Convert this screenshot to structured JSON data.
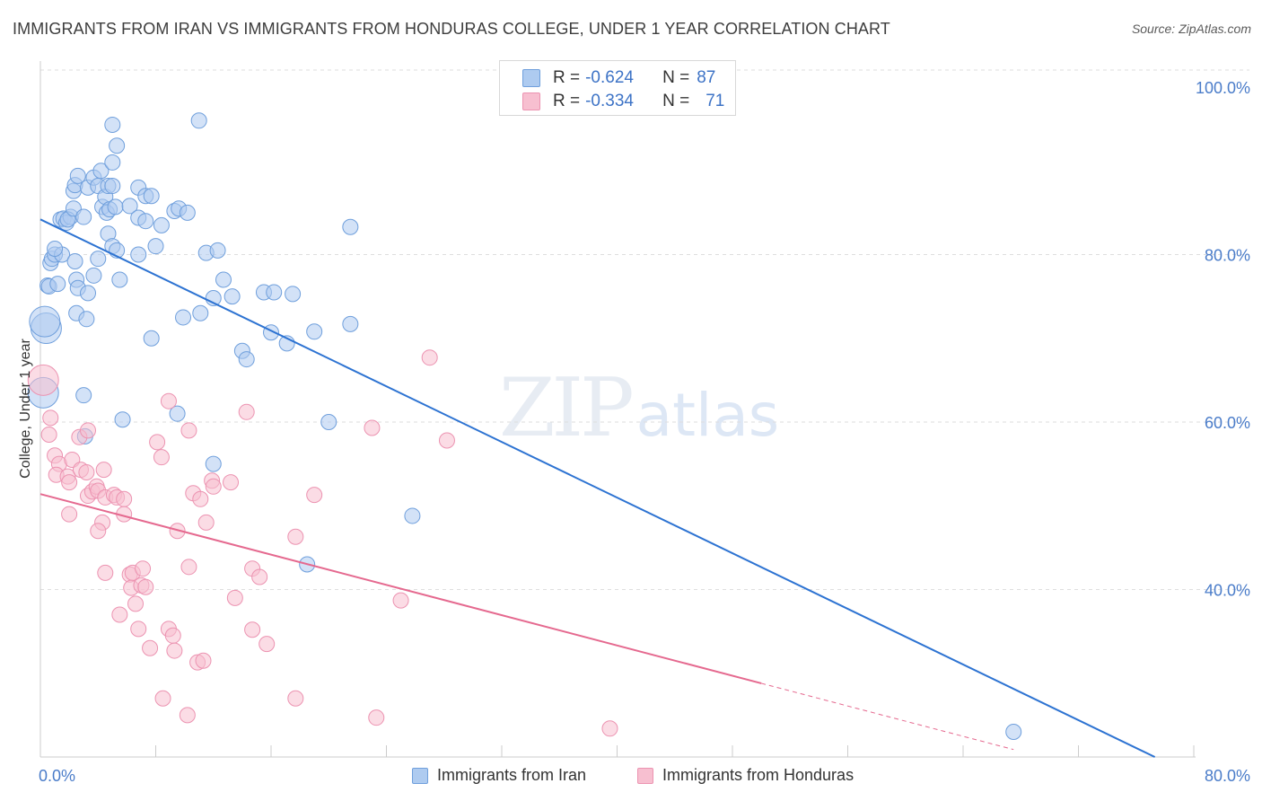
{
  "header": {
    "title": "IMMIGRANTS FROM IRAN VS IMMIGRANTS FROM HONDURAS COLLEGE, UNDER 1 YEAR CORRELATION CHART",
    "source": "Source: ZipAtlas.com"
  },
  "watermark": {
    "zip": "ZIP",
    "atlas": "atlas"
  },
  "stats": {
    "iran": {
      "r_label": "R =",
      "r_value": "-0.624",
      "n_label": "N =",
      "n_value": "87"
    },
    "honduras": {
      "r_label": "R =",
      "r_value": "-0.334",
      "n_label": "N =",
      "n_value": "71"
    }
  },
  "legend": {
    "iran": "Immigrants from Iran",
    "honduras": "Immigrants from Honduras"
  },
  "colors": {
    "iran_fill": "#aecbf0",
    "iran_stroke": "#6f9fdc",
    "iran_line": "#2d73d2",
    "honduras_fill": "#f7bfd0",
    "honduras_stroke": "#ec93b1",
    "honduras_line": "#e5698f",
    "axis_text": "#4a7cc9",
    "grid": "#dedede"
  },
  "chart_data": {
    "type": "scatter",
    "title": "IMMIGRANTS FROM IRAN VS IMMIGRANTS FROM HONDURAS COLLEGE, UNDER 1 YEAR CORRELATION CHART",
    "xlabel": "",
    "ylabel": "College, Under 1 year",
    "xlim": [
      0,
      80
    ],
    "ylim": [
      20,
      104
    ],
    "x_tick_labels": [
      "0.0%",
      "80.0%"
    ],
    "y_ticks": [
      40,
      60,
      80,
      100
    ],
    "y_tick_labels": [
      "40.0%",
      "60.0%",
      "80.0%",
      "100.0%"
    ],
    "grid": "horizontal dashed",
    "legend_position": "bottom-center",
    "series": [
      {
        "name": "Immigrants from Iran",
        "r": -0.624,
        "n": 87,
        "trend": {
          "x": [
            0,
            77.3
          ],
          "y": [
            84.2,
            20
          ]
        },
        "points": [
          [
            0.2,
            63.5
          ],
          [
            0.4,
            71.2
          ],
          [
            0.3,
            72.0
          ],
          [
            0.5,
            76.3
          ],
          [
            0.6,
            76.2
          ],
          [
            1.2,
            76.5
          ],
          [
            0.7,
            79.0
          ],
          [
            0.8,
            79.5
          ],
          [
            1.0,
            80.0
          ],
          [
            1.5,
            80.0
          ],
          [
            1.0,
            80.7
          ],
          [
            1.4,
            84.2
          ],
          [
            1.6,
            84.3
          ],
          [
            1.8,
            83.8
          ],
          [
            2.1,
            84.5
          ],
          [
            1.9,
            84.2
          ],
          [
            2.3,
            85.5
          ],
          [
            2.3,
            87.6
          ],
          [
            2.4,
            88.3
          ],
          [
            2.6,
            89.4
          ],
          [
            3.0,
            84.5
          ],
          [
            2.4,
            79.2
          ],
          [
            2.5,
            77.0
          ],
          [
            2.6,
            76.0
          ],
          [
            3.3,
            75.4
          ],
          [
            2.5,
            73.0
          ],
          [
            3.2,
            72.3
          ],
          [
            3.7,
            77.5
          ],
          [
            4.0,
            79.5
          ],
          [
            3.3,
            88.0
          ],
          [
            3.7,
            89.2
          ],
          [
            4.0,
            88.2
          ],
          [
            4.2,
            90.0
          ],
          [
            4.3,
            85.7
          ],
          [
            4.5,
            86.9
          ],
          [
            4.6,
            85.0
          ],
          [
            4.7,
            88.2
          ],
          [
            4.8,
            85.4
          ],
          [
            5.0,
            88.2
          ],
          [
            4.7,
            82.5
          ],
          [
            5.0,
            81.0
          ],
          [
            5.3,
            80.5
          ],
          [
            5.5,
            77.0
          ],
          [
            5.2,
            85.7
          ],
          [
            5.0,
            91.0
          ],
          [
            5.3,
            93.0
          ],
          [
            5.0,
            95.5
          ],
          [
            6.2,
            85.8
          ],
          [
            6.8,
            84.4
          ],
          [
            6.8,
            80.0
          ],
          [
            6.8,
            88.0
          ],
          [
            7.3,
            87.0
          ],
          [
            7.3,
            84.0
          ],
          [
            7.7,
            87.0
          ],
          [
            8.0,
            81.0
          ],
          [
            8.4,
            83.5
          ],
          [
            9.3,
            85.2
          ],
          [
            9.6,
            85.5
          ],
          [
            10.2,
            85.0
          ],
          [
            11.0,
            96.0
          ],
          [
            11.5,
            80.2
          ],
          [
            12.3,
            80.5
          ],
          [
            12.0,
            74.8
          ],
          [
            11.1,
            73.0
          ],
          [
            9.9,
            72.5
          ],
          [
            7.7,
            70.0
          ],
          [
            12.7,
            77.0
          ],
          [
            13.3,
            75.0
          ],
          [
            14.0,
            68.5
          ],
          [
            14.3,
            67.5
          ],
          [
            15.5,
            75.5
          ],
          [
            16.2,
            75.5
          ],
          [
            16.0,
            70.7
          ],
          [
            17.1,
            69.4
          ],
          [
            17.5,
            75.3
          ],
          [
            19.0,
            70.8
          ],
          [
            21.5,
            71.7
          ],
          [
            21.5,
            83.3
          ],
          [
            20.0,
            60.0
          ],
          [
            12.0,
            55.0
          ],
          [
            9.5,
            61.0
          ],
          [
            5.7,
            60.3
          ],
          [
            3.1,
            58.3
          ],
          [
            3.0,
            63.2
          ],
          [
            25.8,
            48.8
          ],
          [
            18.5,
            43.0
          ],
          [
            67.5,
            23.0
          ]
        ]
      },
      {
        "name": "Immigrants from Honduras",
        "r": -0.334,
        "n": 71,
        "trend": {
          "x": [
            0,
            50
          ],
          "y": [
            51.4,
            28.8
          ],
          "dashed_to": [
            80,
            15.3
          ]
        },
        "points": [
          [
            0.2,
            65.0
          ],
          [
            0.7,
            60.5
          ],
          [
            0.6,
            58.5
          ],
          [
            1.0,
            56.0
          ],
          [
            1.3,
            55.0
          ],
          [
            2.2,
            55.5
          ],
          [
            1.1,
            53.7
          ],
          [
            1.9,
            53.5
          ],
          [
            2.0,
            52.8
          ],
          [
            2.0,
            49.0
          ],
          [
            2.8,
            54.3
          ],
          [
            3.2,
            54.0
          ],
          [
            3.3,
            51.2
          ],
          [
            2.7,
            58.2
          ],
          [
            3.3,
            59.0
          ],
          [
            3.6,
            51.7
          ],
          [
            3.9,
            52.3
          ],
          [
            4.0,
            51.8
          ],
          [
            4.4,
            54.3
          ],
          [
            4.5,
            51.0
          ],
          [
            5.1,
            51.3
          ],
          [
            5.3,
            51.0
          ],
          [
            5.8,
            50.8
          ],
          [
            5.8,
            49.0
          ],
          [
            4.3,
            48.0
          ],
          [
            4.0,
            47.0
          ],
          [
            4.5,
            42.0
          ],
          [
            5.5,
            37.0
          ],
          [
            6.2,
            41.8
          ],
          [
            6.4,
            42.0
          ],
          [
            6.3,
            40.2
          ],
          [
            6.6,
            38.3
          ],
          [
            7.0,
            40.5
          ],
          [
            7.3,
            40.3
          ],
          [
            7.1,
            42.5
          ],
          [
            6.8,
            35.3
          ],
          [
            7.6,
            33.0
          ],
          [
            8.1,
            57.6
          ],
          [
            8.4,
            55.8
          ],
          [
            8.9,
            62.5
          ],
          [
            9.5,
            47.0
          ],
          [
            8.9,
            35.3
          ],
          [
            9.2,
            34.5
          ],
          [
            9.3,
            32.7
          ],
          [
            8.5,
            27.0
          ],
          [
            10.2,
            25.0
          ],
          [
            10.3,
            42.7
          ],
          [
            10.3,
            59.0
          ],
          [
            10.6,
            51.5
          ],
          [
            11.1,
            50.8
          ],
          [
            10.9,
            31.3
          ],
          [
            11.3,
            31.5
          ],
          [
            11.5,
            48.0
          ],
          [
            11.9,
            53.0
          ],
          [
            12.0,
            52.3
          ],
          [
            13.2,
            52.8
          ],
          [
            13.5,
            39.0
          ],
          [
            14.3,
            61.2
          ],
          [
            14.7,
            35.2
          ],
          [
            14.7,
            42.5
          ],
          [
            15.2,
            41.5
          ],
          [
            15.7,
            33.5
          ],
          [
            17.7,
            46.3
          ],
          [
            17.7,
            27.0
          ],
          [
            19.0,
            51.3
          ],
          [
            23.0,
            59.3
          ],
          [
            23.3,
            24.7
          ],
          [
            25.0,
            38.7
          ],
          [
            27.0,
            67.7
          ],
          [
            28.2,
            57.8
          ],
          [
            39.5,
            23.4
          ]
        ]
      }
    ]
  }
}
